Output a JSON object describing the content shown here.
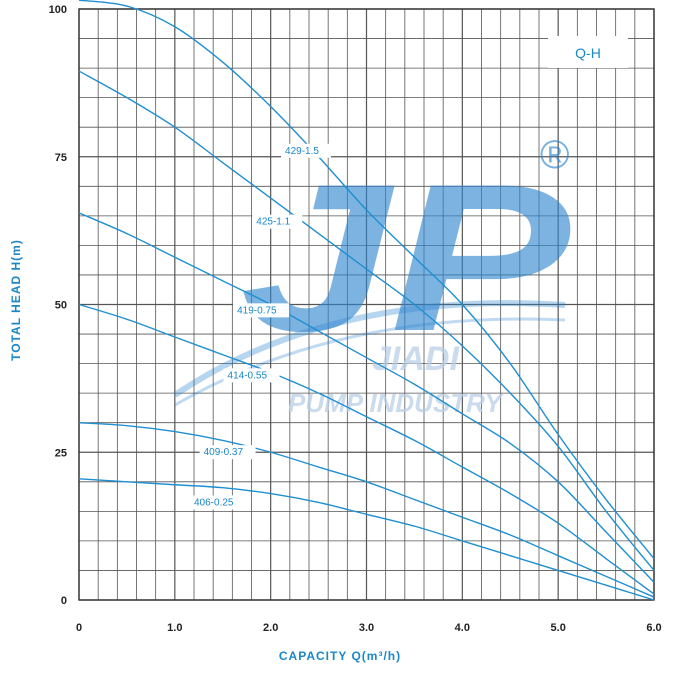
{
  "chart_data": {
    "type": "line",
    "xlabel": "CAPACITY   Q(m³/h)",
    "ylabel": "TOTAL HEAD H(m)",
    "tag": "Q-H",
    "xlim": [
      0,
      6
    ],
    "ylim": [
      0,
      100
    ],
    "x_ticks": [
      "0",
      "1.0",
      "2.0",
      "3.0",
      "4.0",
      "5.0",
      "6.0"
    ],
    "y_ticks": [
      "0",
      "25",
      "50",
      "75",
      "100"
    ],
    "grid": true,
    "series": [
      {
        "name": "429-1.5",
        "x": [
          0,
          0.5,
          1.0,
          1.5,
          2.0,
          2.5,
          3.0,
          3.5,
          4.0,
          4.5,
          5.0,
          5.5,
          6.0
        ],
        "y": [
          101.5,
          100.5,
          97,
          91,
          83.5,
          75,
          66,
          58,
          50,
          40,
          28,
          17,
          7
        ]
      },
      {
        "name": "425-1.1",
        "x": [
          0,
          0.5,
          1.0,
          1.5,
          2.0,
          2.5,
          3.0,
          3.5,
          4.0,
          4.5,
          5.0,
          5.5,
          6.0
        ],
        "y": [
          89.5,
          85,
          80,
          74,
          68,
          62,
          56,
          50,
          43,
          35,
          26,
          15,
          5
        ]
      },
      {
        "name": "419-0.75",
        "x": [
          0,
          0.5,
          1.0,
          1.5,
          2.0,
          2.5,
          3.0,
          3.5,
          4.0,
          4.5,
          5.0,
          5.5,
          6.0
        ],
        "y": [
          65.5,
          62,
          58,
          54,
          50,
          45.5,
          41,
          36.5,
          31.5,
          26.5,
          20,
          11.5,
          3
        ]
      },
      {
        "name": "414-0.55",
        "x": [
          0,
          0.5,
          1.0,
          1.5,
          2.0,
          2.5,
          3.0,
          3.5,
          4.0,
          4.5,
          5.0,
          5.5,
          6.0
        ],
        "y": [
          50,
          47.5,
          44.5,
          41.5,
          38.5,
          35,
          31,
          27,
          22.5,
          18,
          13,
          7,
          1
        ]
      },
      {
        "name": "409-0.37",
        "x": [
          0,
          0.5,
          1.0,
          1.5,
          2.0,
          2.5,
          3.0,
          3.5,
          4.0,
          4.5,
          5.0,
          5.5,
          6.0
        ],
        "y": [
          30,
          29.5,
          28.5,
          27,
          25,
          22.5,
          20,
          17,
          14,
          11,
          7.5,
          4,
          0.5
        ]
      },
      {
        "name": "406-0.25",
        "x": [
          0,
          0.5,
          1.0,
          1.5,
          2.0,
          2.5,
          3.0,
          3.5,
          4.0,
          4.5,
          5.0,
          5.5,
          6.0
        ],
        "y": [
          20.5,
          20,
          19.5,
          19,
          18,
          16.5,
          14.5,
          12.5,
          10,
          7.5,
          5,
          2.5,
          0
        ]
      }
    ],
    "curve_labels": [
      {
        "text": "429-1.5",
        "x": 2.15,
        "y": 75.5
      },
      {
        "text": "425-1.1",
        "x": 1.85,
        "y": 63.5
      },
      {
        "text": "419-0.75",
        "x": 1.65,
        "y": 48.5
      },
      {
        "text": "414-0.55",
        "x": 1.55,
        "y": 37.5
      },
      {
        "text": "409-0.37",
        "x": 1.3,
        "y": 24.5
      },
      {
        "text": "406-0.25",
        "x": 1.2,
        "y": 16.0
      }
    ],
    "colors": {
      "curve": "#1f8fd0",
      "grid": "#555555",
      "axis_text": "#222222",
      "accent": "#1a87c9"
    }
  },
  "watermark": {
    "logo": "JP",
    "registered": "®",
    "brand": "JIADI",
    "company": "PUMP INDUSTRY"
  }
}
